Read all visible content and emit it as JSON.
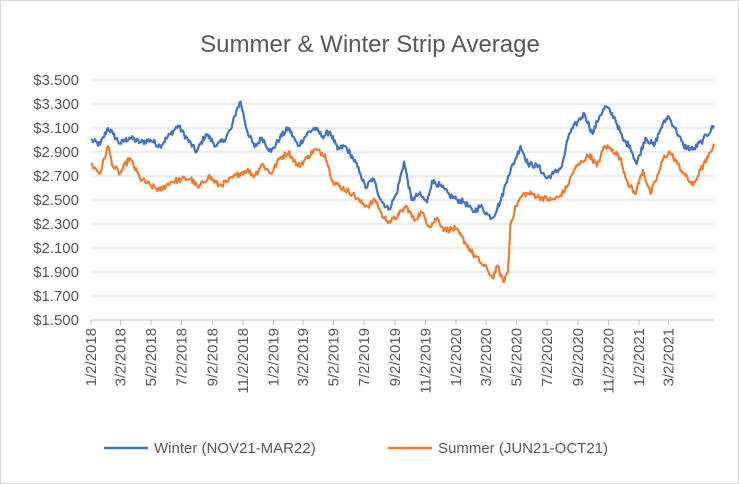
{
  "chart_data": {
    "type": "line",
    "title": "Summer & Winter Strip Average",
    "xlabel": "",
    "ylabel": "",
    "ylim": [
      1.5,
      3.5
    ],
    "y_ticks": [
      "$3.500",
      "$3.300",
      "$3.100",
      "$2.900",
      "$2.700",
      "$2.500",
      "$2.300",
      "$2.100",
      "$1.900",
      "$1.700",
      "$1.500"
    ],
    "x_ticks": [
      "1/2/2018",
      "3/2/2018",
      "5/2/2018",
      "7/2/2018",
      "9/2/2018",
      "11/2/2018",
      "1/2/2019",
      "3/2/2019",
      "5/2/2019",
      "7/2/2019",
      "9/2/2019",
      "11/2/2019",
      "1/2/2020",
      "3/2/2020",
      "5/2/2020",
      "7/2/2020",
      "9/2/2020",
      "11/2/2020",
      "1/2/2021",
      "3/2/2021"
    ],
    "x_range": [
      "2018-01-02",
      "2021-06-01"
    ],
    "grid": "horizontal",
    "legend_position": "bottom",
    "series": [
      {
        "name": "Winter (NOV21-MAR22)",
        "color": "#4472c4",
        "points": [
          [
            "2018-01-02",
            3.0
          ],
          [
            "2018-01-20",
            2.96
          ],
          [
            "2018-02-05",
            3.1
          ],
          [
            "2018-02-15",
            3.05
          ],
          [
            "2018-03-01",
            2.97
          ],
          [
            "2018-03-20",
            3.02
          ],
          [
            "2018-04-10",
            2.98
          ],
          [
            "2018-05-01",
            3.0
          ],
          [
            "2018-05-20",
            2.95
          ],
          [
            "2018-06-10",
            3.05
          ],
          [
            "2018-06-25",
            3.12
          ],
          [
            "2018-07-15",
            3.0
          ],
          [
            "2018-08-01",
            2.9
          ],
          [
            "2018-08-20",
            3.05
          ],
          [
            "2018-09-10",
            2.95
          ],
          [
            "2018-09-25",
            3.0
          ],
          [
            "2018-10-10",
            3.1
          ],
          [
            "2018-10-20",
            3.25
          ],
          [
            "2018-10-28",
            3.32
          ],
          [
            "2018-11-10",
            3.08
          ],
          [
            "2018-11-25",
            2.94
          ],
          [
            "2018-12-10",
            3.02
          ],
          [
            "2018-12-28",
            2.9
          ],
          [
            "2019-01-15",
            3.02
          ],
          [
            "2019-02-01",
            3.1
          ],
          [
            "2019-02-20",
            2.95
          ],
          [
            "2019-03-10",
            3.05
          ],
          [
            "2019-03-25",
            3.1
          ],
          [
            "2019-04-10",
            3.03
          ],
          [
            "2019-04-25",
            3.07
          ],
          [
            "2019-05-10",
            2.92
          ],
          [
            "2019-05-25",
            2.95
          ],
          [
            "2019-06-10",
            2.85
          ],
          [
            "2019-06-25",
            2.72
          ],
          [
            "2019-07-05",
            2.6
          ],
          [
            "2019-07-20",
            2.68
          ],
          [
            "2019-08-05",
            2.5
          ],
          [
            "2019-08-20",
            2.42
          ],
          [
            "2019-09-05",
            2.55
          ],
          [
            "2019-09-20",
            2.82
          ],
          [
            "2019-10-05",
            2.5
          ],
          [
            "2019-10-20",
            2.55
          ],
          [
            "2019-11-05",
            2.48
          ],
          [
            "2019-11-15",
            2.66
          ],
          [
            "2019-12-01",
            2.62
          ],
          [
            "2019-12-20",
            2.54
          ],
          [
            "2020-01-05",
            2.5
          ],
          [
            "2020-01-20",
            2.48
          ],
          [
            "2020-02-05",
            2.4
          ],
          [
            "2020-02-20",
            2.45
          ],
          [
            "2020-03-05",
            2.38
          ],
          [
            "2020-03-15",
            2.35
          ],
          [
            "2020-04-01",
            2.5
          ],
          [
            "2020-04-15",
            2.7
          ],
          [
            "2020-05-01",
            2.85
          ],
          [
            "2020-05-10",
            2.95
          ],
          [
            "2020-05-25",
            2.8
          ],
          [
            "2020-06-15",
            2.78
          ],
          [
            "2020-07-01",
            2.68
          ],
          [
            "2020-07-15",
            2.72
          ],
          [
            "2020-08-01",
            2.78
          ],
          [
            "2020-08-15",
            3.05
          ],
          [
            "2020-09-01",
            3.15
          ],
          [
            "2020-09-15",
            3.22
          ],
          [
            "2020-10-01",
            3.05
          ],
          [
            "2020-10-15",
            3.2
          ],
          [
            "2020-10-28",
            3.28
          ],
          [
            "2020-11-15",
            3.18
          ],
          [
            "2020-12-01",
            3.0
          ],
          [
            "2020-12-15",
            2.95
          ],
          [
            "2020-12-28",
            2.8
          ],
          [
            "2021-01-15",
            3.02
          ],
          [
            "2021-02-01",
            2.95
          ],
          [
            "2021-02-15",
            3.1
          ],
          [
            "2021-03-01",
            3.2
          ],
          [
            "2021-03-15",
            3.1
          ],
          [
            "2021-04-01",
            2.95
          ],
          [
            "2021-04-20",
            2.92
          ],
          [
            "2021-05-10",
            3.0
          ],
          [
            "2021-06-01",
            3.12
          ]
        ]
      },
      {
        "name": "Summer  (JUN21-OCT21)",
        "color": "#ed7d31",
        "points": [
          [
            "2018-01-02",
            2.8
          ],
          [
            "2018-01-20",
            2.72
          ],
          [
            "2018-02-05",
            2.95
          ],
          [
            "2018-02-15",
            2.78
          ],
          [
            "2018-03-01",
            2.72
          ],
          [
            "2018-03-20",
            2.85
          ],
          [
            "2018-04-10",
            2.68
          ],
          [
            "2018-05-01",
            2.62
          ],
          [
            "2018-05-20",
            2.58
          ],
          [
            "2018-06-10",
            2.65
          ],
          [
            "2018-07-01",
            2.67
          ],
          [
            "2018-07-20",
            2.68
          ],
          [
            "2018-08-05",
            2.6
          ],
          [
            "2018-08-25",
            2.7
          ],
          [
            "2018-09-15",
            2.62
          ],
          [
            "2018-10-01",
            2.65
          ],
          [
            "2018-10-25",
            2.72
          ],
          [
            "2018-11-10",
            2.75
          ],
          [
            "2018-11-25",
            2.7
          ],
          [
            "2018-12-10",
            2.8
          ],
          [
            "2018-12-28",
            2.72
          ],
          [
            "2019-01-15",
            2.85
          ],
          [
            "2019-02-01",
            2.9
          ],
          [
            "2019-02-20",
            2.78
          ],
          [
            "2019-03-10",
            2.85
          ],
          [
            "2019-03-25",
            2.92
          ],
          [
            "2019-04-15",
            2.88
          ],
          [
            "2019-05-01",
            2.65
          ],
          [
            "2019-05-20",
            2.6
          ],
          [
            "2019-06-10",
            2.55
          ],
          [
            "2019-06-25",
            2.48
          ],
          [
            "2019-07-10",
            2.45
          ],
          [
            "2019-07-25",
            2.5
          ],
          [
            "2019-08-10",
            2.35
          ],
          [
            "2019-08-25",
            2.32
          ],
          [
            "2019-09-10",
            2.38
          ],
          [
            "2019-09-25",
            2.45
          ],
          [
            "2019-10-10",
            2.33
          ],
          [
            "2019-10-25",
            2.4
          ],
          [
            "2019-11-10",
            2.28
          ],
          [
            "2019-11-25",
            2.35
          ],
          [
            "2019-12-10",
            2.25
          ],
          [
            "2020-01-01",
            2.26
          ],
          [
            "2020-01-20",
            2.15
          ],
          [
            "2020-02-05",
            2.05
          ],
          [
            "2020-02-20",
            1.98
          ],
          [
            "2020-03-05",
            1.92
          ],
          [
            "2020-03-15",
            1.85
          ],
          [
            "2020-03-25",
            1.95
          ],
          [
            "2020-04-05",
            1.82
          ],
          [
            "2020-04-15",
            1.9
          ],
          [
            "2020-04-20",
            2.3
          ],
          [
            "2020-05-01",
            2.45
          ],
          [
            "2020-05-15",
            2.55
          ],
          [
            "2020-06-01",
            2.55
          ],
          [
            "2020-06-20",
            2.52
          ],
          [
            "2020-07-10",
            2.5
          ],
          [
            "2020-07-25",
            2.52
          ],
          [
            "2020-08-10",
            2.6
          ],
          [
            "2020-08-25",
            2.75
          ],
          [
            "2020-09-10",
            2.82
          ],
          [
            "2020-09-25",
            2.88
          ],
          [
            "2020-10-10",
            2.78
          ],
          [
            "2020-10-25",
            2.95
          ],
          [
            "2020-11-10",
            2.92
          ],
          [
            "2020-11-25",
            2.85
          ],
          [
            "2020-12-10",
            2.65
          ],
          [
            "2020-12-25",
            2.55
          ],
          [
            "2021-01-10",
            2.75
          ],
          [
            "2021-01-25",
            2.55
          ],
          [
            "2021-02-10",
            2.72
          ],
          [
            "2021-02-20",
            2.85
          ],
          [
            "2021-03-05",
            2.9
          ],
          [
            "2021-03-20",
            2.8
          ],
          [
            "2021-04-05",
            2.7
          ],
          [
            "2021-04-20",
            2.62
          ],
          [
            "2021-05-05",
            2.75
          ],
          [
            "2021-05-20",
            2.85
          ],
          [
            "2021-06-01",
            2.97
          ]
        ]
      }
    ]
  }
}
